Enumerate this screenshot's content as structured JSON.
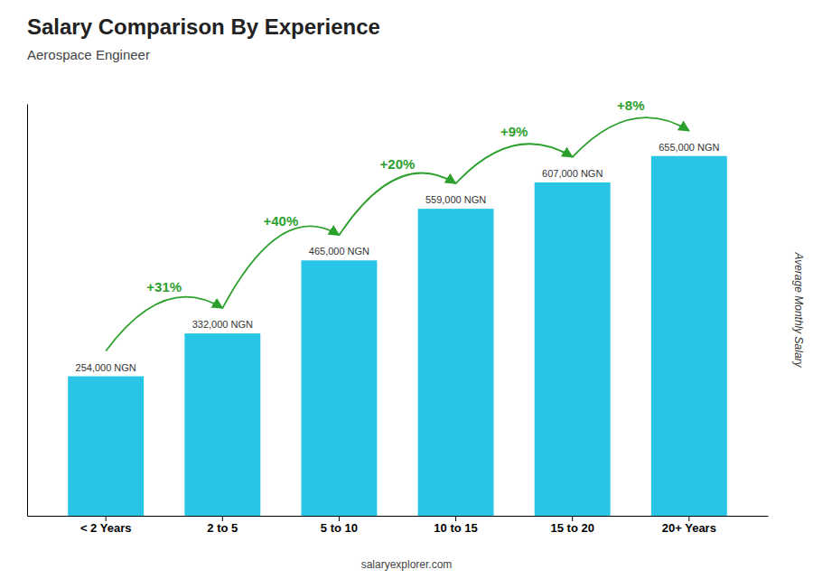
{
  "chart_data": {
    "type": "bar",
    "title": "Salary Comparison By Experience",
    "subtitle": "Aerospace Engineer",
    "categories": [
      "< 2 Years",
      "2 to 5",
      "5 to 10",
      "10 to 15",
      "15 to 20",
      "20+ Years"
    ],
    "values": [
      254000,
      332000,
      465000,
      559000,
      607000,
      655000
    ],
    "value_labels": [
      "254,000 NGN",
      "332,000 NGN",
      "465,000 NGN",
      "559,000 NGN",
      "607,000 NGN",
      "655,000 NGN"
    ],
    "data_labels": true,
    "color": "#29C5E6",
    "annotations": [
      "+31%",
      "+40%",
      "+20%",
      "+9%",
      "+8%"
    ],
    "ylabel": "Average Monthly Salary",
    "footer": "salaryexplorer.com",
    "ylim": [
      0,
      750000
    ],
    "yticks": [],
    "tick_labels": "x",
    "grid": false
  }
}
